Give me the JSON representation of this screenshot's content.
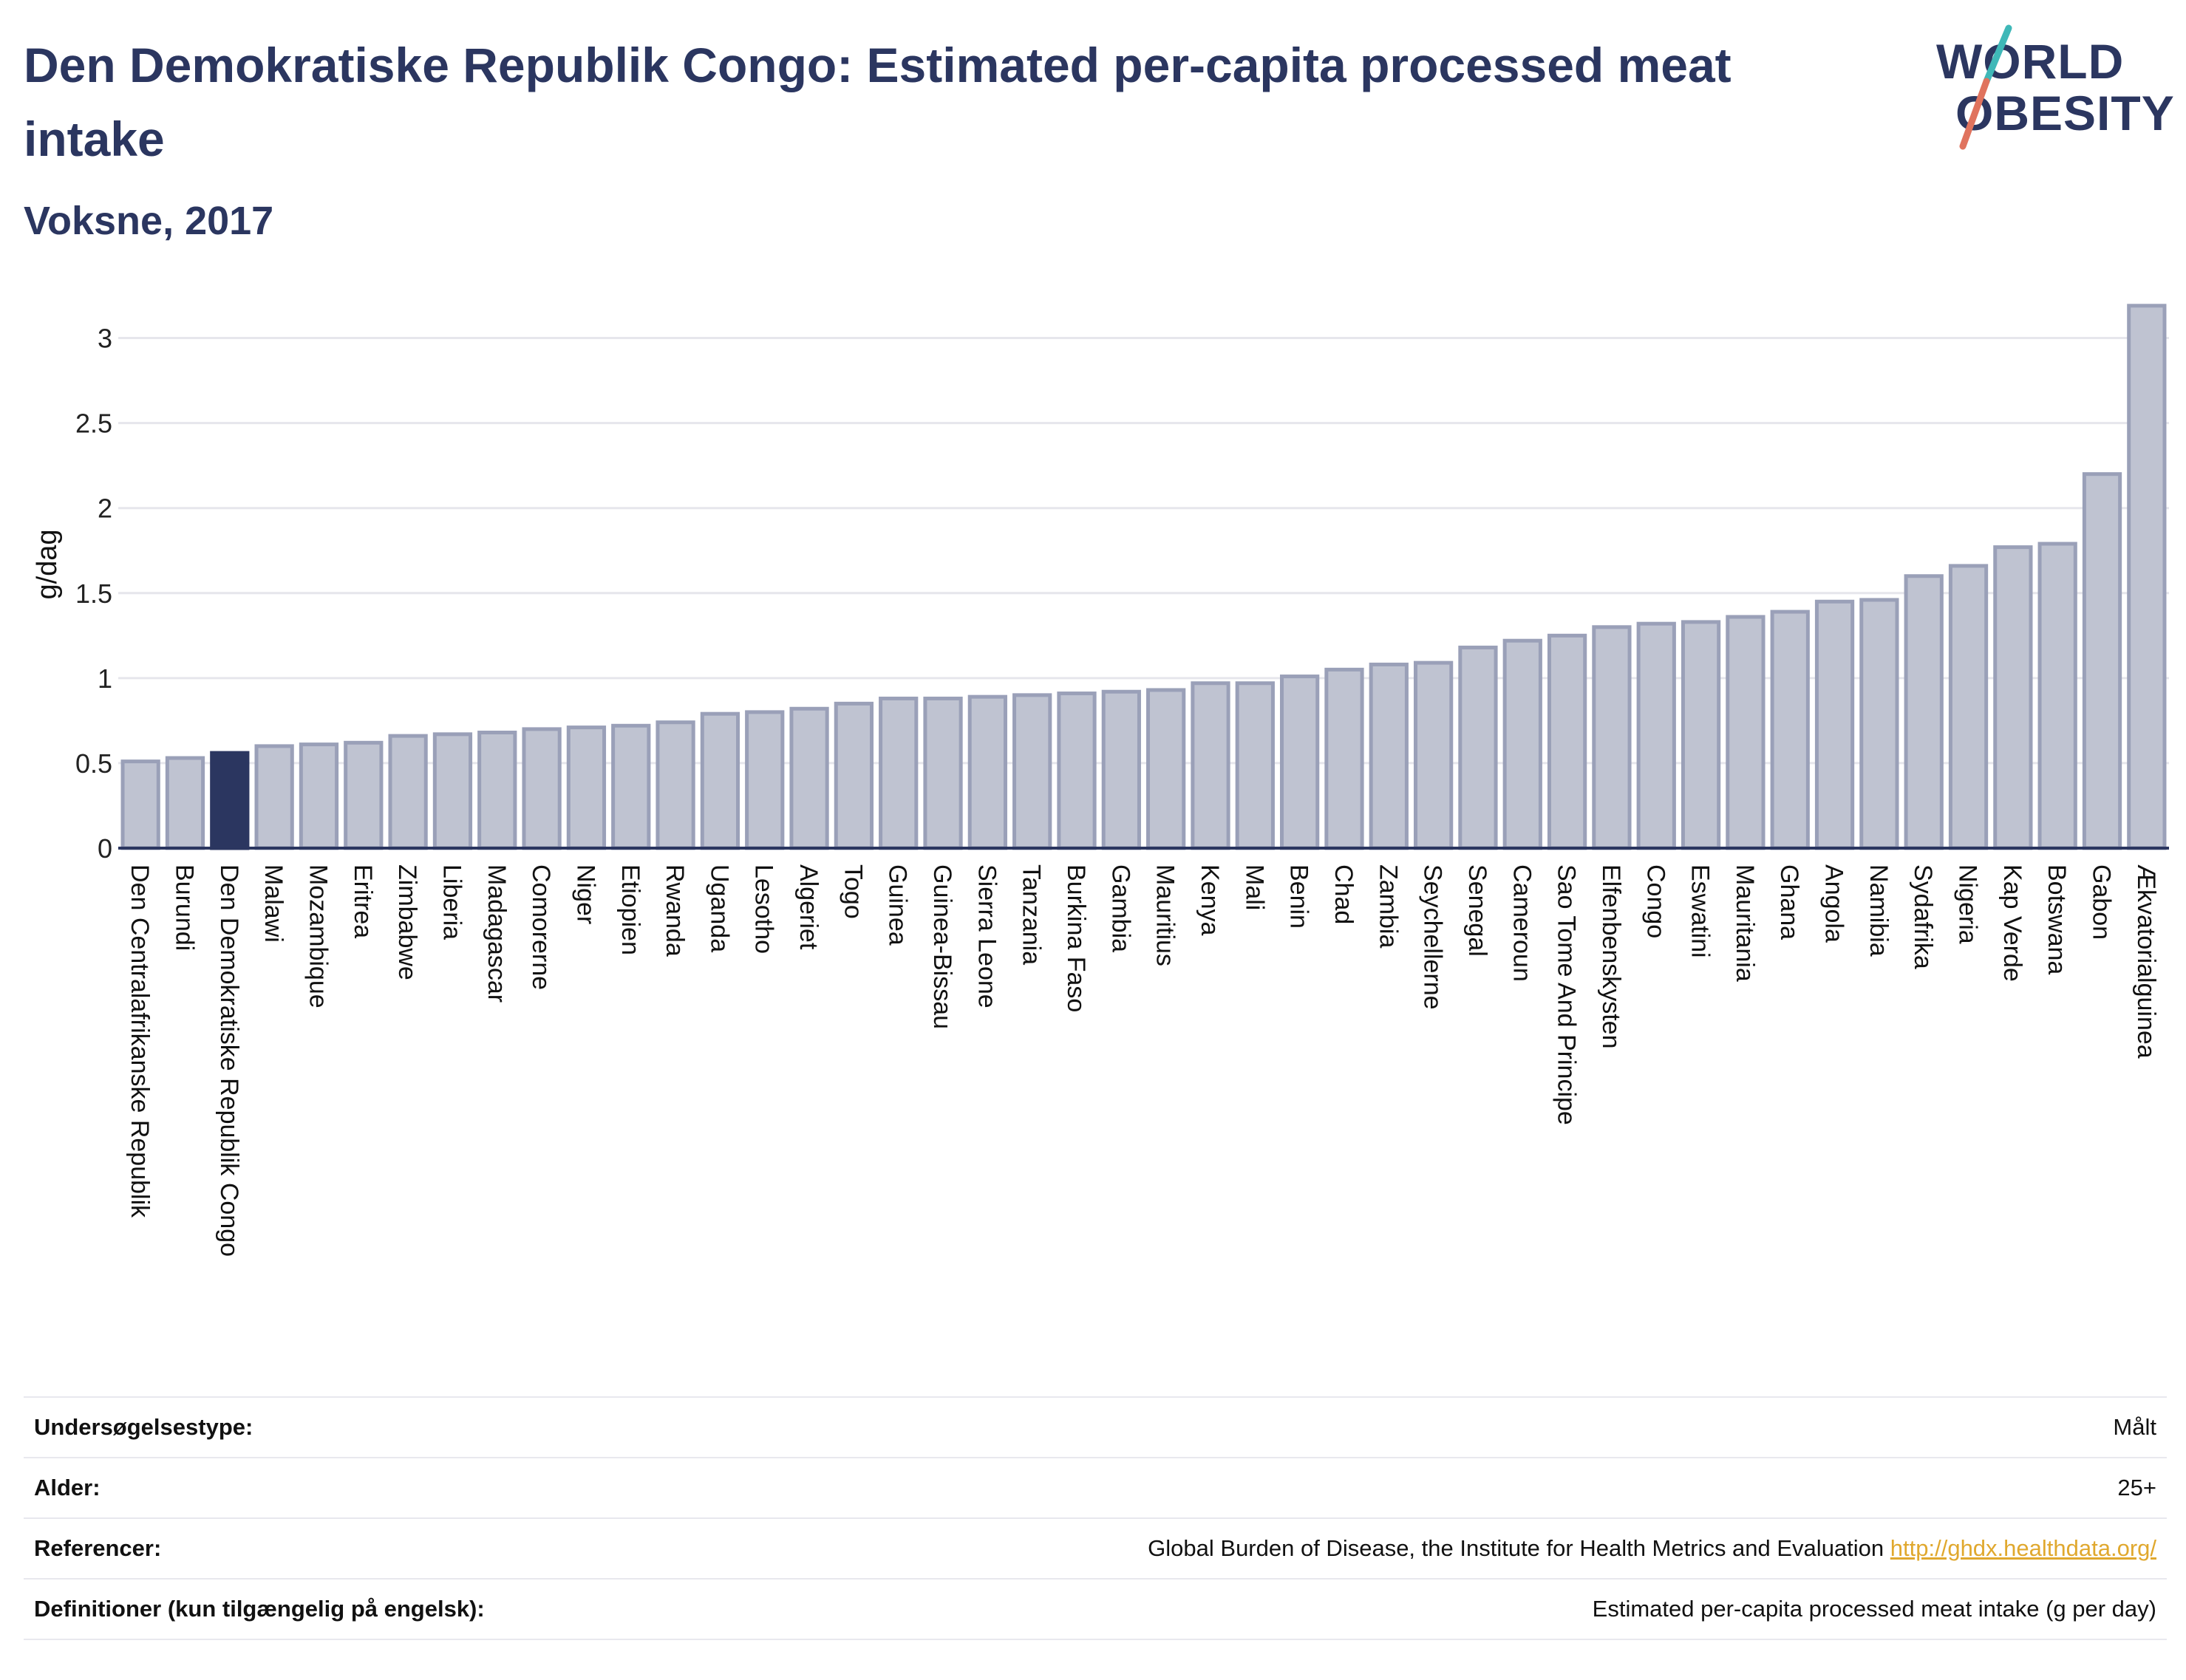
{
  "header": {
    "title": "Den Demokratiske Republik Congo: Estimated per-capita processed meat intake",
    "subtitle": "Voksne, 2017"
  },
  "logo": {
    "line1": "WORLD",
    "line2": "OBESITY",
    "slash_colors": [
      "#3fb8b8",
      "#e0735e"
    ]
  },
  "colors": {
    "bar": "#bfc3d1",
    "bar_stroke": "#9aa0b8",
    "highlight": "#2b3660",
    "grid": "#e6e6ec",
    "text": "#2b3660",
    "link": "#e0a82e"
  },
  "chart_data": {
    "type": "bar",
    "ylabel": "g/dag",
    "ylim": [
      0,
      3.25
    ],
    "yticks": [
      0,
      0.5,
      1,
      1.5,
      2,
      2.5,
      3
    ],
    "ytick_labels": [
      "0",
      "0.5",
      "1",
      "1.5",
      "2",
      "2.5",
      "3"
    ],
    "grid": true,
    "highlight": "Den Demokratiske Republik Congo",
    "categories": [
      "Den Centralafrikanske Republik",
      "Burundi",
      "Den Demokratiske Republik Congo",
      "Malawi",
      "Mozambique",
      "Eritrea",
      "Zimbabwe",
      "Liberia",
      "Madagascar",
      "Comorerne",
      "Niger",
      "Etiopien",
      "Rwanda",
      "Uganda",
      "Lesotho",
      "Algeriet",
      "Togo",
      "Guinea",
      "Guinea-Bissau",
      "Sierra Leone",
      "Tanzania",
      "Burkina Faso",
      "Gambia",
      "Mauritius",
      "Kenya",
      "Mali",
      "Benin",
      "Chad",
      "Zambia",
      "Seychellerne",
      "Senegal",
      "Cameroun",
      "Sao Tome And Principe",
      "Elfenbenskysten",
      "Congo",
      "Eswatini",
      "Mauritania",
      "Ghana",
      "Angola",
      "Namibia",
      "Sydafrika",
      "Nigeria",
      "Kap Verde",
      "Botswana",
      "Gabon",
      "Ækvatorialguinea"
    ],
    "values": [
      0.51,
      0.53,
      0.56,
      0.6,
      0.61,
      0.62,
      0.66,
      0.67,
      0.68,
      0.7,
      0.71,
      0.72,
      0.74,
      0.79,
      0.8,
      0.82,
      0.85,
      0.88,
      0.88,
      0.89,
      0.9,
      0.91,
      0.92,
      0.93,
      0.97,
      0.97,
      1.01,
      1.05,
      1.08,
      1.09,
      1.18,
      1.22,
      1.25,
      1.3,
      1.32,
      1.33,
      1.36,
      1.39,
      1.45,
      1.46,
      1.6,
      1.66,
      1.77,
      1.79,
      2.2,
      3.19
    ]
  },
  "footer": {
    "rows": [
      {
        "label": "Undersøgelsestype:",
        "value": "Målt"
      },
      {
        "label": "Alder:",
        "value": "25+"
      },
      {
        "label": "Referencer:",
        "value": "Global Burden of Disease, the Institute for Health Metrics and Evaluation",
        "link": "http://ghdx.healthdata.org/"
      },
      {
        "label": "Definitioner (kun tilgængelig på engelsk):",
        "value": "Estimated per-capita processed meat intake (g per day)"
      }
    ]
  }
}
